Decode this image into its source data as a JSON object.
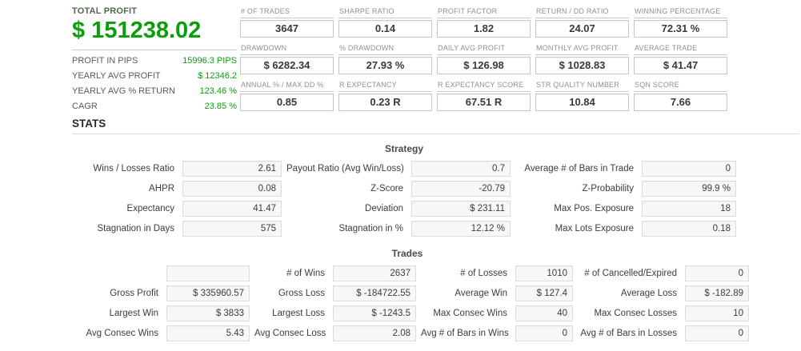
{
  "summary": {
    "title": "TOTAL PROFIT",
    "value": "$ 151238.02",
    "rows": [
      {
        "label": "PROFIT IN PIPS",
        "value": "15996.3 PIPS"
      },
      {
        "label": "YEARLY AVG PROFIT",
        "value": "$ 12346.2"
      },
      {
        "label": "YEARLY AVG % RETURN",
        "value": "123.46 %"
      },
      {
        "label": "CAGR",
        "value": "23.85 %"
      }
    ]
  },
  "kpis": [
    {
      "label": "# OF TRADES",
      "value": "3647"
    },
    {
      "label": "SHARPE RATIO",
      "value": "0.14"
    },
    {
      "label": "PROFIT FACTOR",
      "value": "1.82"
    },
    {
      "label": "RETURN / DD RATIO",
      "value": "24.07"
    },
    {
      "label": "WINNING PERCENTAGE",
      "value": "72.31 %"
    },
    {
      "label": "DRAWDOWN",
      "value": "$ 6282.34"
    },
    {
      "label": "% DRAWDOWN",
      "value": "27.93 %"
    },
    {
      "label": "DAILY AVG PROFIT",
      "value": "$ 126.98"
    },
    {
      "label": "MONTHLY AVG PROFIT",
      "value": "$ 1028.83"
    },
    {
      "label": "AVERAGE TRADE",
      "value": "$ 41.47"
    },
    {
      "label": "ANNUAL % / MAX DD %",
      "value": "0.85"
    },
    {
      "label": "R EXPECTANCY",
      "value": "0.23 R"
    },
    {
      "label": "R EXPECTANCY SCORE",
      "value": "67.51 R"
    },
    {
      "label": "STR QUALITY NUMBER",
      "value": "10.84"
    },
    {
      "label": "SQN SCORE",
      "value": "7.66"
    }
  ],
  "stats_header": "STATS",
  "strategy": {
    "title": "Strategy",
    "rows": [
      {
        "cells": [
          {
            "label": "Wins / Losses Ratio",
            "value": "2.61"
          },
          {
            "label": "Payout Ratio (Avg Win/Loss)",
            "value": "0.7"
          },
          {
            "label": "Average # of Bars in Trade",
            "value": "0"
          }
        ]
      },
      {
        "cells": [
          {
            "label": "AHPR",
            "value": "0.08"
          },
          {
            "label": "Z-Score",
            "value": "-20.79"
          },
          {
            "label": "Z-Probability",
            "value": "99.9 %"
          }
        ]
      },
      {
        "cells": [
          {
            "label": "Expectancy",
            "value": "41.47"
          },
          {
            "label": "Deviation",
            "value": "$ 231.11"
          },
          {
            "label": "Max Pos. Exposure",
            "value": "18"
          }
        ]
      },
      {
        "cells": [
          {
            "label": "Stagnation in Days",
            "value": "575"
          },
          {
            "label": "Stagnation in %",
            "value": "12.12 %"
          },
          {
            "label": "Max Lots Exposure",
            "value": "0.18"
          }
        ]
      }
    ]
  },
  "trades": {
    "title": "Trades",
    "rows": [
      {
        "cells": [
          {
            "label": "",
            "value": ""
          },
          {
            "label": "# of Wins",
            "value": "2637"
          },
          {
            "label": "# of Losses",
            "value": "1010"
          },
          {
            "label": "# of Cancelled/Expired",
            "value": "0"
          }
        ]
      },
      {
        "cells": [
          {
            "label": "Gross Profit",
            "value": "$ 335960.57"
          },
          {
            "label": "Gross Loss",
            "value": "$ -184722.55"
          },
          {
            "label": "Average Win",
            "value": "$ 127.4"
          },
          {
            "label": "Average Loss",
            "value": "$ -182.89"
          }
        ]
      },
      {
        "cells": [
          {
            "label": "Largest Win",
            "value": "$ 3833"
          },
          {
            "label": "Largest Loss",
            "value": "$ -1243.5"
          },
          {
            "label": "Max Consec Wins",
            "value": "40"
          },
          {
            "label": "Max Consec Losses",
            "value": "10"
          }
        ]
      },
      {
        "cells": [
          {
            "label": "Avg Consec Wins",
            "value": "5.43"
          },
          {
            "label": "Avg Consec Loss",
            "value": "2.08"
          },
          {
            "label": "Avg # of Bars in Wins",
            "value": "0"
          },
          {
            "label": "Avg # of Bars in Losses",
            "value": "0"
          }
        ]
      }
    ]
  },
  "colors": {
    "profit_green": "#0a9e0a",
    "summary_title_green": "#50684c",
    "value_text": "#3a3a3a",
    "box_background": "#f7f7f7"
  }
}
